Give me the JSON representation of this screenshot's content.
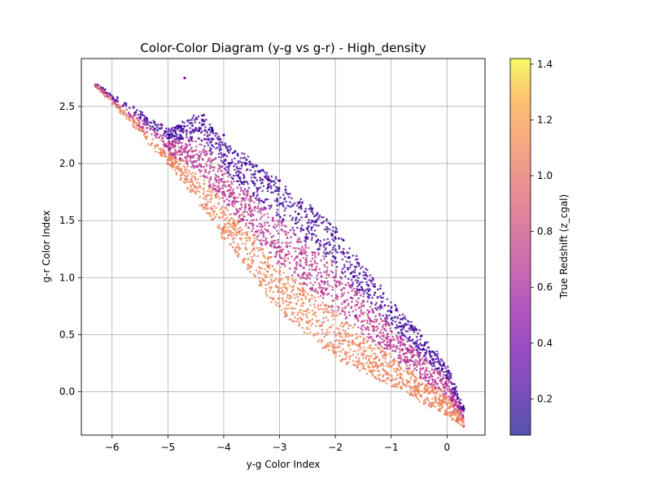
{
  "chart_data": {
    "type": "scatter",
    "title": "Color-Color Diagram (y-g vs g-r) - High_density",
    "xlabel": "y-g Color Index",
    "ylabel": "g-r Color Index",
    "xlim": [
      -6.55,
      0.68
    ],
    "ylim": [
      -0.38,
      2.92
    ],
    "xticks": [
      -6,
      -5,
      -4,
      -3,
      -2,
      -1,
      0
    ],
    "yticks": [
      0.0,
      0.5,
      1.0,
      1.5,
      2.0,
      2.5
    ],
    "grid": true,
    "colorbar": {
      "label": "True Redshift (z_cgal)",
      "colormap": "plasma",
      "range": [
        0.07,
        1.42
      ],
      "ticks": [
        0.2,
        0.4,
        0.6,
        0.8,
        1.0,
        1.2,
        1.4
      ]
    },
    "regions": [
      {
        "description": "main point cloud, colored by redshift",
        "lower_edge": [
          [
            -6.3,
            2.69
          ],
          [
            -5.0,
            2.0
          ],
          [
            -4.0,
            1.35
          ],
          [
            -3.0,
            0.7
          ],
          [
            -2.0,
            0.3
          ],
          [
            -1.0,
            0.05
          ],
          [
            0.0,
            -0.2
          ],
          [
            0.3,
            -0.3
          ]
        ],
        "upper_edge": [
          [
            -6.3,
            2.69
          ],
          [
            -5.0,
            2.3
          ],
          [
            -4.4,
            2.45
          ],
          [
            -4.0,
            2.2
          ],
          [
            -3.0,
            1.85
          ],
          [
            -2.0,
            1.45
          ],
          [
            -1.0,
            0.8
          ],
          [
            0.0,
            0.25
          ],
          [
            0.3,
            -0.15
          ]
        ],
        "low_z_band": [
          [
            -4.0,
            2.2
          ],
          [
            -3.0,
            1.7
          ],
          [
            -2.0,
            1.3
          ],
          [
            -1.0,
            0.6
          ],
          [
            0.0,
            0.1
          ],
          [
            0.3,
            -0.2
          ]
        ],
        "high_z_band": [
          [
            -5.0,
            2.0
          ],
          [
            -4.0,
            1.3
          ],
          [
            -3.0,
            0.7
          ],
          [
            -2.0,
            0.3
          ],
          [
            -1.0,
            0.05
          ],
          [
            0.0,
            -0.2
          ],
          [
            0.3,
            -0.3
          ]
        ]
      }
    ],
    "sample_points": [
      {
        "x": -6.3,
        "y": 2.69,
        "z": 1.0
      },
      {
        "x": -4.7,
        "y": 2.75,
        "z": 0.5
      },
      {
        "x": -4.0,
        "y": 2.25,
        "z": 0.3
      },
      {
        "x": -3.0,
        "y": 1.85,
        "z": 0.35
      },
      {
        "x": -2.0,
        "y": 1.4,
        "z": 0.25
      },
      {
        "x": -1.0,
        "y": 0.7,
        "z": 0.3
      },
      {
        "x": 0.3,
        "y": -0.15,
        "z": 0.25
      },
      {
        "x": -5.0,
        "y": 2.0,
        "z": 1.2
      },
      {
        "x": -3.0,
        "y": 0.75,
        "z": 1.35
      },
      {
        "x": -1.0,
        "y": 0.1,
        "z": 1.3
      },
      {
        "x": 0.3,
        "y": -0.3,
        "z": 1.1
      }
    ]
  }
}
